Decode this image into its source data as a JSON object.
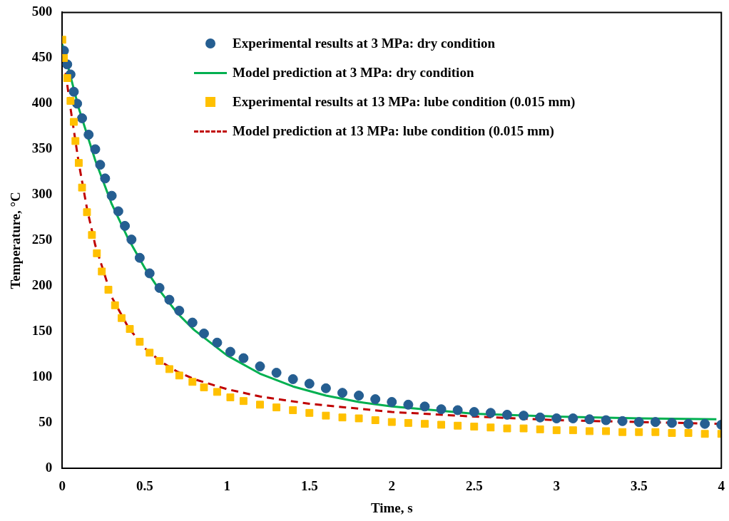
{
  "chart_data": {
    "type": "scatter",
    "xlabel": "Time, s",
    "ylabel": "Temperature, °C",
    "xlim": [
      0,
      4
    ],
    "xticks": [
      0,
      0.5,
      1,
      1.5,
      2,
      2.5,
      3,
      3.5,
      4
    ],
    "ylim": [
      0,
      500
    ],
    "yticks": [
      0,
      50,
      100,
      150,
      200,
      250,
      300,
      350,
      400,
      450,
      500
    ],
    "grid": false,
    "legend": "top right",
    "series": [
      {
        "name": "Experimental results at 3 MPa: dry condition",
        "type": "scatter",
        "marker": "circle",
        "color": "#255e91",
        "x": [
          0.01,
          0.03,
          0.05,
          0.07,
          0.09,
          0.12,
          0.16,
          0.2,
          0.23,
          0.26,
          0.3,
          0.34,
          0.38,
          0.42,
          0.47,
          0.53,
          0.59,
          0.65,
          0.71,
          0.79,
          0.86,
          0.94,
          1.02,
          1.1,
          1.2,
          1.3,
          1.4,
          1.5,
          1.6,
          1.7,
          1.8,
          1.9,
          2.0,
          2.1,
          2.2,
          2.3,
          2.4,
          2.5,
          2.6,
          2.7,
          2.8,
          2.9,
          3.0,
          3.1,
          3.2,
          3.3,
          3.4,
          3.5,
          3.6,
          3.7,
          3.8,
          3.9,
          4.0
        ],
        "values": [
          458,
          443,
          432,
          413,
          400,
          384,
          366,
          350,
          333,
          318,
          299,
          282,
          266,
          251,
          231,
          214,
          198,
          185,
          173,
          160,
          148,
          138,
          128,
          121,
          112,
          105,
          98,
          93,
          88,
          83,
          80,
          76,
          73,
          70,
          68,
          65,
          64,
          62,
          61,
          59,
          58,
          56,
          55,
          55,
          54,
          53,
          52,
          51,
          51,
          50,
          49,
          49,
          48
        ]
      },
      {
        "name": "Model prediction at 3 MPa: dry condition",
        "type": "line",
        "marker": "none",
        "line_style": "solid",
        "color": "#00b050",
        "x": [
          0,
          0.1,
          0.2,
          0.3,
          0.4,
          0.5,
          0.6,
          0.7,
          0.8,
          1.0,
          1.2,
          1.4,
          1.6,
          1.8,
          2.0,
          2.5,
          3.0,
          3.5,
          3.97
        ],
        "values": [
          465,
          395,
          338,
          290,
          252,
          220,
          193,
          170,
          152,
          124,
          104,
          90,
          80,
          73,
          68,
          60,
          57,
          55,
          54
        ]
      },
      {
        "name": "Experimental results at 13 MPa: lube condition (0.015 mm)",
        "type": "scatter",
        "marker": "square",
        "color": "#ffc000",
        "x": [
          0,
          0.01,
          0.03,
          0.05,
          0.07,
          0.08,
          0.1,
          0.12,
          0.15,
          0.18,
          0.21,
          0.24,
          0.28,
          0.32,
          0.36,
          0.41,
          0.47,
          0.53,
          0.59,
          0.65,
          0.71,
          0.79,
          0.86,
          0.94,
          1.02,
          1.1,
          1.2,
          1.3,
          1.4,
          1.5,
          1.6,
          1.7,
          1.8,
          1.9,
          2.0,
          2.1,
          2.2,
          2.3,
          2.4,
          2.5,
          2.6,
          2.7,
          2.8,
          2.9,
          3.0,
          3.1,
          3.2,
          3.3,
          3.4,
          3.5,
          3.6,
          3.7,
          3.8,
          3.9,
          4.0
        ],
        "values": [
          470,
          450,
          428,
          403,
          380,
          359,
          335,
          308,
          281,
          256,
          236,
          216,
          196,
          179,
          165,
          153,
          139,
          127,
          118,
          109,
          102,
          95,
          89,
          84,
          78,
          74,
          70,
          67,
          64,
          61,
          58,
          56,
          55,
          53,
          51,
          50,
          49,
          48,
          47,
          46,
          45,
          44,
          44,
          43,
          42,
          42,
          41,
          41,
          40,
          40,
          40,
          39,
          39,
          38,
          38
        ]
      },
      {
        "name": "Model prediction at 13 MPa: lube condition (0.015 mm)",
        "type": "line",
        "marker": "none",
        "line_style": "dashed",
        "color": "#c00000",
        "x": [
          0,
          0.05,
          0.1,
          0.15,
          0.2,
          0.3,
          0.4,
          0.5,
          0.6,
          0.7,
          0.8,
          1.0,
          1.2,
          1.5,
          2.0,
          2.5,
          3.0,
          3.5,
          4.0
        ],
        "values": [
          460,
          395,
          335,
          285,
          245,
          188,
          155,
          132,
          117,
          106,
          98,
          87,
          79,
          71,
          62,
          57,
          53,
          51,
          49
        ]
      }
    ]
  }
}
